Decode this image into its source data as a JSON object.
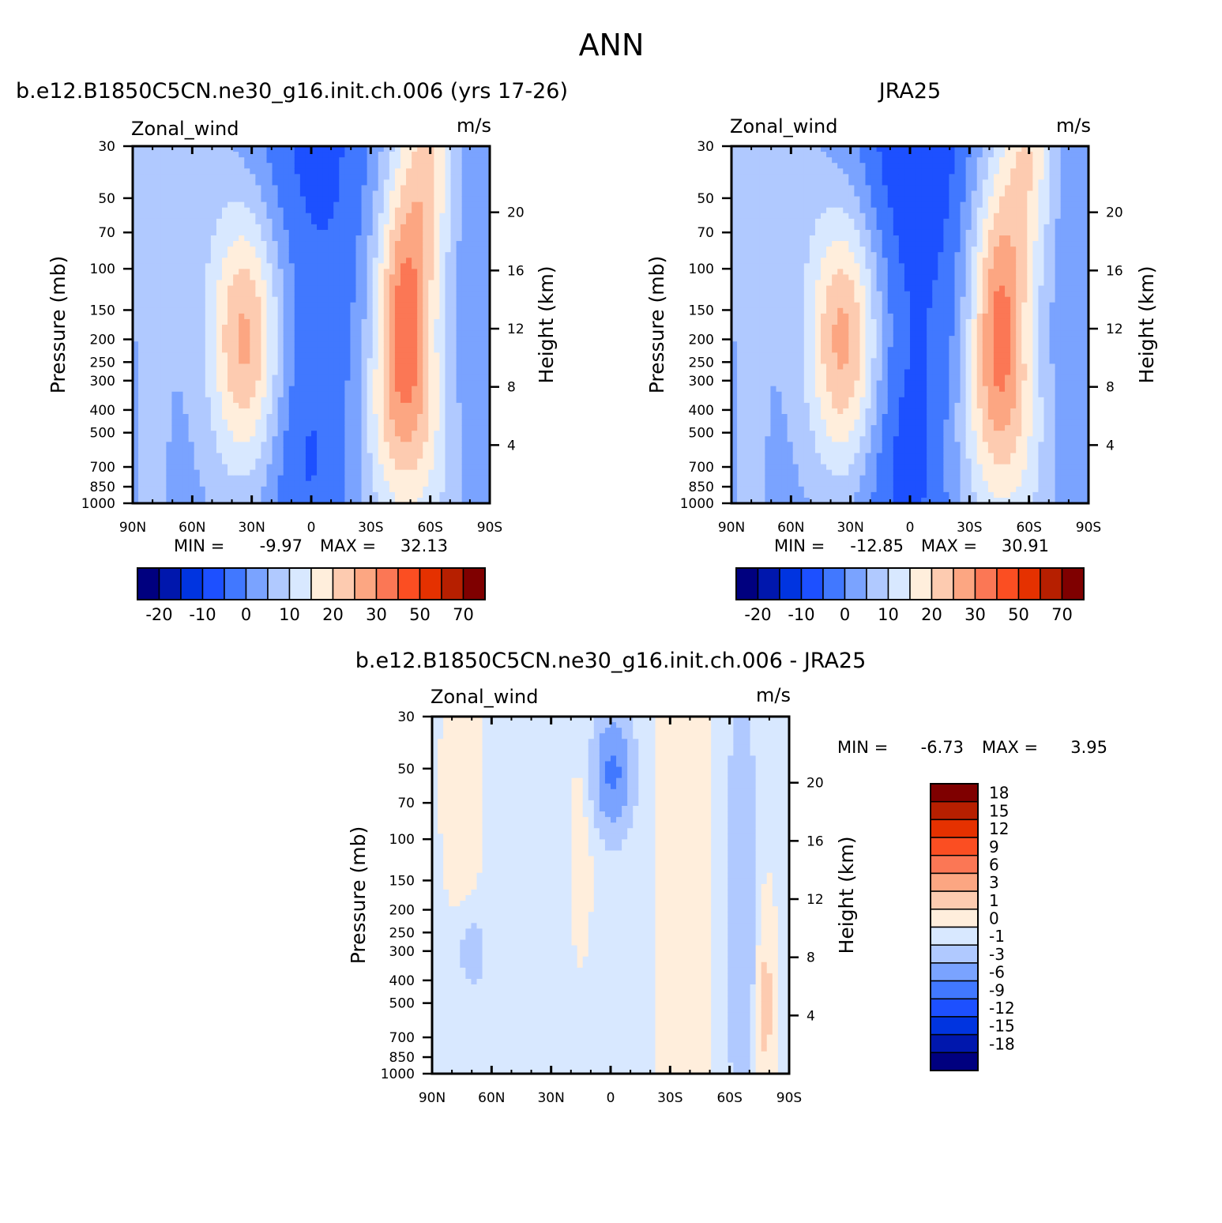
{
  "page": {
    "title": "ANN"
  },
  "colors": {
    "wind_scale": [
      "#00007f",
      "#0017ad",
      "#0034e0",
      "#1d50ff",
      "#4178ff",
      "#7aa3ff",
      "#b0c9ff",
      "#d8e8ff",
      "#ffeedc",
      "#fdcbb0",
      "#fca682",
      "#fb7755",
      "#fb4e22",
      "#e53100",
      "#b61f00",
      "#7f0000"
    ],
    "diff_scale": [
      "#00007f",
      "#0017ad",
      "#0034e0",
      "#1d50ff",
      "#4178ff",
      "#7aa3ff",
      "#b0c9ff",
      "#d8e8ff",
      "#ffeedc",
      "#fdcbb0",
      "#fca682",
      "#fb7755",
      "#fb4e22",
      "#e53100",
      "#b61f00",
      "#7f0000"
    ]
  },
  "chart_data": [
    {
      "type": "heatmap",
      "id": "model",
      "title": "b.e12.B1850C5CN.ne30_g16.init.ch.006 (yrs 17-26)",
      "left_label": "Zonal_wind",
      "right_label": "m/s",
      "xlabel": "",
      "ylabel": "Pressure (mb)",
      "y2label": "Height (km)",
      "x_ticks": [
        "90N",
        "60N",
        "30N",
        "0",
        "30S",
        "60S",
        "90S"
      ],
      "y_ticks": [
        30,
        50,
        70,
        100,
        150,
        200,
        250,
        300,
        400,
        500,
        700,
        850,
        1000
      ],
      "y2_ticks": [
        20,
        16,
        12,
        8,
        4
      ],
      "ylim": [
        30,
        1000
      ],
      "y_scale": "log",
      "min_label": "MIN =",
      "min_value": "-9.97",
      "max_label": "MAX =",
      "max_value": "32.13",
      "colorbar_labels": [
        "-20",
        "-10",
        "0",
        "10",
        "20",
        "30",
        "50",
        "70"
      ],
      "jets": {
        "nh_core_lat": 33,
        "nh_core_p": 200,
        "nh_max": 25,
        "sh_core_lat": -47,
        "sh_core_p": 200,
        "sh_max": 32.13,
        "eq_min": -9.97
      }
    },
    {
      "type": "heatmap",
      "id": "obs",
      "title": "JRA25",
      "left_label": "Zonal_wind",
      "right_label": "m/s",
      "xlabel": "",
      "ylabel": "Pressure (mb)",
      "y2label": "Height (km)",
      "x_ticks": [
        "90N",
        "60N",
        "30N",
        "0",
        "30S",
        "60S",
        "90S"
      ],
      "y_ticks": [
        30,
        50,
        70,
        100,
        150,
        200,
        250,
        300,
        400,
        500,
        700,
        850,
        1000
      ],
      "y2_ticks": [
        20,
        16,
        12,
        8,
        4
      ],
      "ylim": [
        30,
        1000
      ],
      "y_scale": "log",
      "min_label": "MIN =",
      "min_value": "-12.85",
      "max_label": "MAX =",
      "max_value": "30.91",
      "colorbar_labels": [
        "-20",
        "-10",
        "0",
        "10",
        "20",
        "30",
        "50",
        "70"
      ],
      "jets": {
        "nh_core_lat": 33,
        "nh_core_p": 200,
        "nh_max": 26,
        "sh_core_lat": -45,
        "sh_core_p": 200,
        "sh_max": 30.91,
        "eq_min": -12.85
      }
    },
    {
      "type": "heatmap",
      "id": "diff",
      "title": "b.e12.B1850C5CN.ne30_g16.init.ch.006 - JRA25",
      "left_label": "Zonal_wind",
      "right_label": "m/s",
      "xlabel": "",
      "ylabel": "Pressure (mb)",
      "y2label": "Height (km)",
      "x_ticks": [
        "90N",
        "60N",
        "30N",
        "0",
        "30S",
        "60S",
        "90S"
      ],
      "y_ticks": [
        30,
        50,
        70,
        100,
        150,
        200,
        250,
        300,
        400,
        500,
        700,
        850,
        1000
      ],
      "y2_ticks": [
        20,
        16,
        12,
        8,
        4
      ],
      "ylim": [
        30,
        1000
      ],
      "y_scale": "log",
      "min_label": "MIN =",
      "min_value": "-6.73",
      "max_label": "MAX =",
      "max_value": "3.95",
      "colorbar_labels": [
        "18",
        "15",
        "12",
        "9",
        "6",
        "3",
        "1",
        "0",
        "-1",
        "-3",
        "-6",
        "-9",
        "-12",
        "-15",
        "-18"
      ]
    }
  ]
}
